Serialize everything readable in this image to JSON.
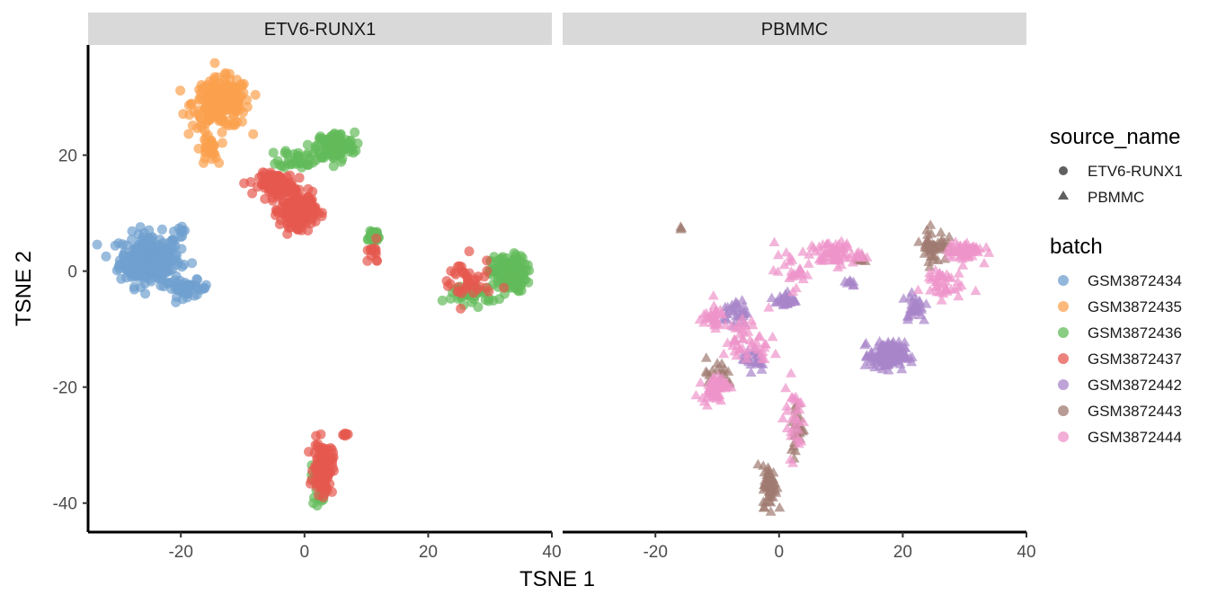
{
  "chart_data": {
    "type": "scatter",
    "facets": [
      "ETV6-RUNX1",
      "PBMMC"
    ],
    "xlabel": "TSNE 1",
    "ylabel": "TSNE 2",
    "xlim": [
      -35,
      40
    ],
    "ylim": [
      -45,
      39
    ],
    "xticks": [
      -20,
      0,
      20,
      40
    ],
    "yticks": [
      -40,
      -20,
      0,
      20
    ],
    "xtick_labels": [
      "-20",
      "0",
      "20",
      "40"
    ],
    "ytick_labels": [
      "-40",
      "-20",
      "0",
      "20"
    ],
    "legend_position": "right",
    "legend": {
      "shape_title": "source_name",
      "shapes": [
        {
          "label": "ETV6-RUNX1",
          "shape": "circle"
        },
        {
          "label": "PBMMC",
          "shape": "triangle"
        }
      ],
      "color_title": "batch",
      "colors": [
        {
          "label": "GSM3872434",
          "color": "#6f9fcf"
        },
        {
          "label": "GSM3872435",
          "color": "#fba14f"
        },
        {
          "label": "GSM3872436",
          "color": "#62bb5a"
        },
        {
          "label": "GSM3872437",
          "color": "#e5584f"
        },
        {
          "label": "GSM3872442",
          "color": "#a884c9"
        },
        {
          "label": "GSM3872443",
          "color": "#a07a70"
        },
        {
          "label": "GSM3872444",
          "color": "#ee94ca"
        }
      ]
    },
    "clusters": [
      {
        "panel": "ETV6-RUNX1",
        "batch": "GSM3872434",
        "cx": -25,
        "cy": 2,
        "sx": 3.5,
        "sy": 3.2,
        "n": 260
      },
      {
        "panel": "ETV6-RUNX1",
        "batch": "GSM3872434",
        "cx": -19,
        "cy": -3,
        "sx": 2.5,
        "sy": 1,
        "n": 40
      },
      {
        "panel": "ETV6-RUNX1",
        "batch": "GSM3872434",
        "cx": -20,
        "cy": 7,
        "sx": 1,
        "sy": 0.8,
        "n": 8
      },
      {
        "panel": "ETV6-RUNX1",
        "batch": "GSM3872435",
        "cx": -13.5,
        "cy": 29,
        "sx": 3.3,
        "sy": 3,
        "n": 220
      },
      {
        "panel": "ETV6-RUNX1",
        "batch": "GSM3872435",
        "cx": -15.5,
        "cy": 21,
        "sx": 1,
        "sy": 2,
        "n": 30
      },
      {
        "panel": "ETV6-RUNX1",
        "batch": "GSM3872436",
        "cx": 5,
        "cy": 21.5,
        "sx": 2.2,
        "sy": 1.7,
        "n": 130
      },
      {
        "panel": "ETV6-RUNX1",
        "batch": "GSM3872436",
        "cx": -1,
        "cy": 19.5,
        "sx": 2.2,
        "sy": 1.2,
        "n": 40
      },
      {
        "panel": "ETV6-RUNX1",
        "batch": "GSM3872436",
        "cx": 11,
        "cy": 6,
        "sx": 1,
        "sy": 1,
        "n": 25
      },
      {
        "panel": "ETV6-RUNX1",
        "batch": "GSM3872436",
        "cx": 33,
        "cy": -0.5,
        "sx": 2,
        "sy": 2.2,
        "n": 140
      },
      {
        "panel": "ETV6-RUNX1",
        "batch": "GSM3872436",
        "cx": 27,
        "cy": -4,
        "sx": 3,
        "sy": 1.2,
        "n": 40
      },
      {
        "panel": "ETV6-RUNX1",
        "batch": "GSM3872436",
        "cx": 2.5,
        "cy": -36,
        "sx": 1,
        "sy": 3,
        "n": 35
      },
      {
        "panel": "ETV6-RUNX1",
        "batch": "GSM3872437",
        "cx": -4.5,
        "cy": 15,
        "sx": 2,
        "sy": 1.3,
        "n": 120
      },
      {
        "panel": "ETV6-RUNX1",
        "batch": "GSM3872437",
        "cx": -1,
        "cy": 10.5,
        "sx": 2,
        "sy": 2,
        "n": 200
      },
      {
        "panel": "ETV6-RUNX1",
        "batch": "GSM3872437",
        "cx": 11,
        "cy": 3,
        "sx": 1,
        "sy": 1.3,
        "n": 14
      },
      {
        "panel": "ETV6-RUNX1",
        "batch": "GSM3872437",
        "cx": 26,
        "cy": -2,
        "sx": 3,
        "sy": 3,
        "n": 40
      },
      {
        "panel": "ETV6-RUNX1",
        "batch": "GSM3872437",
        "cx": 3,
        "cy": -34,
        "sx": 1.1,
        "sy": 3.2,
        "n": 110
      },
      {
        "panel": "ETV6-RUNX1",
        "batch": "GSM3872437",
        "cx": 6.5,
        "cy": -28,
        "sx": 0.5,
        "sy": 0.4,
        "n": 6
      },
      {
        "panel": "PBMMC",
        "batch": "GSM3872442",
        "cx": 17.5,
        "cy": -14.5,
        "sx": 2,
        "sy": 1.6,
        "n": 170
      },
      {
        "panel": "PBMMC",
        "batch": "GSM3872442",
        "cx": -7,
        "cy": -7,
        "sx": 1.5,
        "sy": 1.5,
        "n": 35
      },
      {
        "panel": "PBMMC",
        "batch": "GSM3872442",
        "cx": 1,
        "cy": -5,
        "sx": 1.2,
        "sy": 1,
        "n": 25
      },
      {
        "panel": "PBMMC",
        "batch": "GSM3872442",
        "cx": -4,
        "cy": -15,
        "sx": 1.5,
        "sy": 1.5,
        "n": 30
      },
      {
        "panel": "PBMMC",
        "batch": "GSM3872442",
        "cx": 22,
        "cy": -6,
        "sx": 1.5,
        "sy": 2,
        "n": 30
      },
      {
        "panel": "PBMMC",
        "batch": "GSM3872442",
        "cx": 11.5,
        "cy": -2,
        "sx": 0.6,
        "sy": 0.6,
        "n": 8
      },
      {
        "panel": "PBMMC",
        "batch": "GSM3872443",
        "cx": -1.5,
        "cy": -37,
        "sx": 0.8,
        "sy": 2.5,
        "n": 60
      },
      {
        "panel": "PBMMC",
        "batch": "GSM3872443",
        "cx": 3,
        "cy": -27,
        "sx": 0.8,
        "sy": 3.5,
        "n": 30
      },
      {
        "panel": "PBMMC",
        "batch": "GSM3872443",
        "cx": 25,
        "cy": 4.5,
        "sx": 1.5,
        "sy": 2,
        "n": 50
      },
      {
        "panel": "PBMMC",
        "batch": "GSM3872443",
        "cx": -10,
        "cy": -18,
        "sx": 1.8,
        "sy": 2,
        "n": 20
      },
      {
        "panel": "PBMMC",
        "batch": "GSM3872443",
        "cx": -16,
        "cy": 7.5,
        "sx": 0.3,
        "sy": 0.3,
        "n": 3
      },
      {
        "panel": "PBMMC",
        "batch": "GSM3872443",
        "cx": 13,
        "cy": 2,
        "sx": 1,
        "sy": 0.6,
        "n": 8
      },
      {
        "panel": "PBMMC",
        "batch": "GSM3872444",
        "cx": -10.5,
        "cy": -20,
        "sx": 1.5,
        "sy": 1.5,
        "n": 60
      },
      {
        "panel": "PBMMC",
        "batch": "GSM3872444",
        "cx": -5,
        "cy": -12,
        "sx": 3,
        "sy": 3,
        "n": 50
      },
      {
        "panel": "PBMMC",
        "batch": "GSM3872444",
        "cx": 9,
        "cy": 3,
        "sx": 3,
        "sy": 1.5,
        "n": 70
      },
      {
        "panel": "PBMMC",
        "batch": "GSM3872444",
        "cx": 2,
        "cy": 0,
        "sx": 2,
        "sy": 2,
        "n": 25
      },
      {
        "panel": "PBMMC",
        "batch": "GSM3872444",
        "cx": 30,
        "cy": 3.5,
        "sx": 2,
        "sy": 1.2,
        "n": 60
      },
      {
        "panel": "PBMMC",
        "batch": "GSM3872444",
        "cx": 26,
        "cy": -2,
        "sx": 2.5,
        "sy": 2,
        "n": 40
      },
      {
        "panel": "PBMMC",
        "batch": "GSM3872444",
        "cx": 2.5,
        "cy": -25,
        "sx": 1.2,
        "sy": 5,
        "n": 30
      },
      {
        "panel": "PBMMC",
        "batch": "GSM3872444",
        "cx": -11,
        "cy": -8,
        "sx": 1.5,
        "sy": 1.5,
        "n": 30
      }
    ]
  }
}
